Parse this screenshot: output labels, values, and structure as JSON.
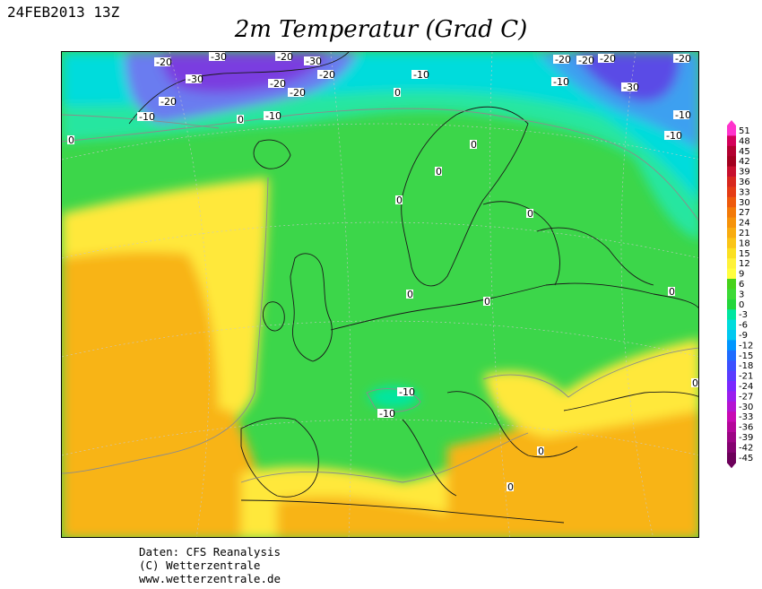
{
  "header": {
    "date": "24FEB2013 13Z",
    "title": "2m Temperatur (Grad C)"
  },
  "credits": {
    "line1": "Daten: CFS Reanalysis",
    "line2": "(C) Wetterzentrale",
    "line3": "www.wetterzentrale.de"
  },
  "legend": {
    "values": [
      "51",
      "48",
      "45",
      "42",
      "39",
      "36",
      "33",
      "30",
      "27",
      "24",
      "21",
      "18",
      "15",
      "12",
      "9",
      "6",
      "3",
      "0",
      "-3",
      "-6",
      "-9",
      "-12",
      "-15",
      "-18",
      "-21",
      "-24",
      "-27",
      "-30",
      "-33",
      "-36",
      "-39",
      "-42",
      "-45"
    ],
    "colors": [
      "#ff33cc",
      "#d4005a",
      "#b30030",
      "#a3001f",
      "#c8102e",
      "#d8281e",
      "#e53c15",
      "#ee5a0c",
      "#f37a08",
      "#f6930a",
      "#f8ac10",
      "#fac518",
      "#fbe022",
      "#fff23a",
      "#ffff3f",
      "#46d21b",
      "#3cda36",
      "#24d63c",
      "#00e6a0",
      "#00dcdc",
      "#00c8f0",
      "#0096ff",
      "#1e6cff",
      "#3c50ff",
      "#5a3cff",
      "#7a28ff",
      "#9a1eee",
      "#b414d2",
      "#c80ab4",
      "#b4069a",
      "#9c0484",
      "#840270",
      "#6c005a"
    ]
  },
  "contours": {
    "top_labels": [
      "-20",
      "-30",
      "-20",
      "-30",
      "-20",
      "-20",
      "-20",
      "-30",
      "-20",
      "-10",
      "0",
      "-10",
      "-10",
      "-20",
      "-20",
      "-20",
      "-30",
      "-20",
      "-10",
      "-10",
      "-10"
    ],
    "map_labels": [
      "-10",
      "0",
      "0",
      "0",
      "0",
      "0",
      "0",
      "0",
      "0",
      "0",
      "0",
      "0",
      "-10",
      "-10",
      "0",
      "0"
    ]
  }
}
